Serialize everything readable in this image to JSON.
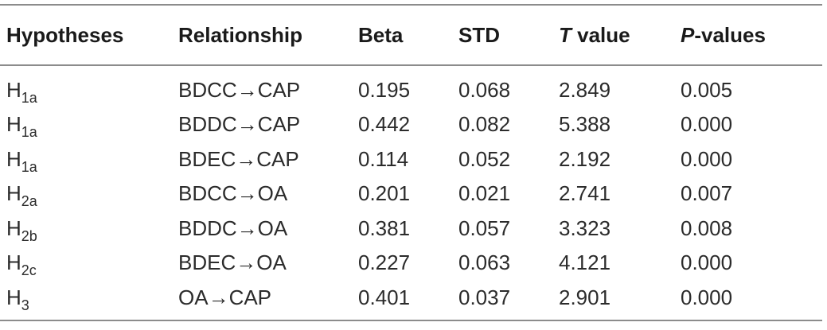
{
  "table": {
    "headers": [
      {
        "key": "hypotheses",
        "label": "Hypotheses",
        "italic_prefix": "",
        "rest": "Hypotheses"
      },
      {
        "key": "relationship",
        "label": "Relationship",
        "italic_prefix": "",
        "rest": "Relationship"
      },
      {
        "key": "beta",
        "label": "Beta",
        "italic_prefix": "",
        "rest": "Beta"
      },
      {
        "key": "std",
        "label": "STD",
        "italic_prefix": "",
        "rest": "STD"
      },
      {
        "key": "t_value",
        "label": "T value",
        "italic_prefix": "T",
        "rest": " value"
      },
      {
        "key": "p_values",
        "label": "P-values",
        "italic_prefix": "P",
        "rest": "-values"
      }
    ],
    "rows": [
      {
        "hyp_base": "H",
        "hyp_sub": "1a",
        "relationship": "BDCC→CAP",
        "beta": "0.195",
        "std": "0.068",
        "t_value": "2.849",
        "p_value": "0.005"
      },
      {
        "hyp_base": "H",
        "hyp_sub": "1a",
        "relationship": "BDDC→CAP",
        "beta": "0.442",
        "std": "0.082",
        "t_value": "5.388",
        "p_value": "0.000"
      },
      {
        "hyp_base": "H",
        "hyp_sub": "1a",
        "relationship": "BDEC→CAP",
        "beta": "0.114",
        "std": "0.052",
        "t_value": "2.192",
        "p_value": "0.000"
      },
      {
        "hyp_base": "H",
        "hyp_sub": "2a",
        "relationship": "BDCC→OA",
        "beta": "0.201",
        "std": "0.021",
        "t_value": "2.741",
        "p_value": "0.007"
      },
      {
        "hyp_base": "H",
        "hyp_sub": "2b",
        "relationship": "BDDC→OA",
        "beta": "0.381",
        "std": "0.057",
        "t_value": "3.323",
        "p_value": "0.008"
      },
      {
        "hyp_base": "H",
        "hyp_sub": "2c",
        "relationship": "BDEC→OA",
        "beta": "0.227",
        "std": "0.063",
        "t_value": "4.121",
        "p_value": "0.000"
      },
      {
        "hyp_base": "H",
        "hyp_sub": "3",
        "relationship": "OA→CAP",
        "beta": "0.401",
        "std": "0.037",
        "t_value": "2.901",
        "p_value": "0.000"
      }
    ]
  }
}
